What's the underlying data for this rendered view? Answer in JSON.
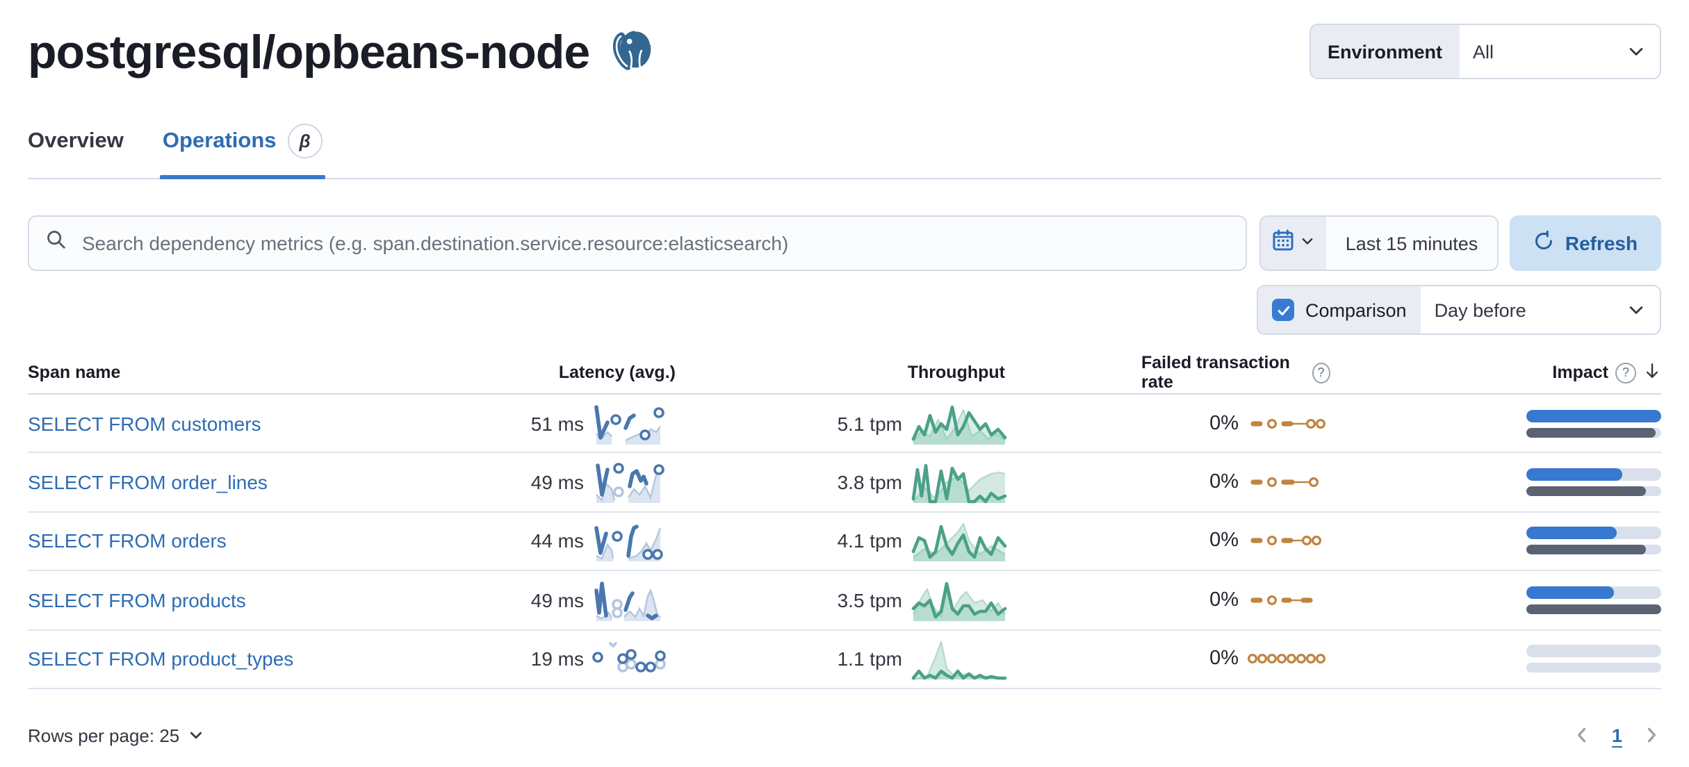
{
  "header": {
    "title": "postgresql/opbeans-node",
    "logo_icon": "postgresql-elephant-icon",
    "environment": {
      "label": "Environment",
      "value": "All"
    }
  },
  "tabs": [
    {
      "label": "Overview",
      "active": false
    },
    {
      "label": "Operations",
      "active": true,
      "beta_label": "β"
    }
  ],
  "toolbar": {
    "search_placeholder": "Search dependency metrics (e.g. span.destination.service.resource:elasticsearch)",
    "time_range": "Last 15 minutes",
    "refresh_label": "Refresh",
    "comparison_label": "Comparison",
    "comparison_checked": true,
    "comparison_value": "Day before"
  },
  "icons": {
    "question": "?"
  },
  "colors": {
    "link_blue": "#2e6cb3",
    "accent_blue": "#3778d0",
    "latency_blue": "#4a77ad",
    "throughput_green": "#4ba088",
    "failed_orange": "#c08441",
    "impact_gray": "#5b6271",
    "refresh_bg": "#cde1f4"
  },
  "table": {
    "columns": [
      "Span name",
      "Latency (avg.)",
      "Throughput",
      "Failed transaction rate",
      "Impact"
    ],
    "sorted_column": "Impact",
    "sort_direction": "desc",
    "rows": [
      {
        "span_name": "SELECT FROM customers",
        "latency": "51 ms",
        "throughput": "5.1 tpm",
        "failed_rate": "0%",
        "impact_pct": 100,
        "impact_prev_pct": 96
      },
      {
        "span_name": "SELECT FROM order_lines",
        "latency": "49 ms",
        "throughput": "3.8 tpm",
        "failed_rate": "0%",
        "impact_pct": 71,
        "impact_prev_pct": 89
      },
      {
        "span_name": "SELECT FROM orders",
        "latency": "44 ms",
        "throughput": "4.1 tpm",
        "failed_rate": "0%",
        "impact_pct": 67,
        "impact_prev_pct": 89
      },
      {
        "span_name": "SELECT FROM products",
        "latency": "49 ms",
        "throughput": "3.5 tpm",
        "failed_rate": "0%",
        "impact_pct": 65,
        "impact_prev_pct": 100
      },
      {
        "span_name": "SELECT FROM product_types",
        "latency": "19 ms",
        "throughput": "1.1 tpm",
        "failed_rate": "0%",
        "impact_pct": 0,
        "impact_prev_pct": 0
      }
    ]
  },
  "sparklines": {
    "latency": [
      {
        "areas": [
          [
            [
              1,
              22
            ],
            [
              4,
              26
            ],
            [
              9,
              21
            ],
            [
              12,
              24
            ]
          ],
          [
            [
              22,
              27
            ],
            [
              28,
              24
            ],
            [
              33,
              22
            ],
            [
              36,
              24
            ],
            [
              40,
              19
            ],
            [
              44,
              21
            ],
            [
              47,
              17
            ]
          ]
        ],
        "segments": [
          [
            [
              1,
              3
            ],
            [
              4,
              25
            ],
            [
              9,
              14
            ]
          ],
          [
            [
              22,
              18
            ],
            [
              25,
              11
            ],
            [
              28,
              9
            ]
          ]
        ],
        "dots": [
          [
            15,
            12
          ],
          [
            36,
            23
          ],
          [
            46,
            7
          ]
        ],
        "lightdots": []
      },
      {
        "areas": [
          [
            [
              1,
              24
            ],
            [
              5,
              28
            ],
            [
              8,
              16
            ],
            [
              12,
              20
            ],
            [
              14,
              28
            ]
          ],
          [
            [
              24,
              26
            ],
            [
              28,
              20
            ],
            [
              32,
              24
            ],
            [
              36,
              18
            ],
            [
              40,
              26
            ],
            [
              44,
              10
            ],
            [
              47,
              8
            ]
          ]
        ],
        "segments": [
          [
            [
              2,
              3
            ],
            [
              5,
              24
            ],
            [
              9,
              6
            ]
          ],
          [
            [
              25,
              18
            ],
            [
              27,
              9
            ],
            [
              30,
              7
            ],
            [
              33,
              14
            ],
            [
              35,
              11
            ],
            [
              37,
              16
            ]
          ]
        ],
        "dots": [
          [
            17,
            5
          ],
          [
            46,
            6
          ]
        ],
        "lightdots": [
          [
            17,
            22
          ]
        ]
      },
      {
        "areas": [
          [
            [
              1,
              26
            ],
            [
              5,
              28
            ],
            [
              9,
              18
            ],
            [
              12,
              22
            ],
            [
              13,
              28
            ]
          ],
          [
            [
              24,
              28
            ],
            [
              30,
              26
            ],
            [
              34,
              22
            ],
            [
              37,
              17
            ],
            [
              40,
              22
            ],
            [
              44,
              14
            ],
            [
              47,
              6
            ]
          ]
        ],
        "segments": [
          [
            [
              1,
              6
            ],
            [
              4,
              24
            ],
            [
              8,
              10
            ]
          ],
          [
            [
              24,
              26
            ],
            [
              26,
              12
            ],
            [
              28,
              6
            ],
            [
              30,
              5
            ]
          ]
        ],
        "dots": [
          [
            16,
            12
          ],
          [
            38,
            25
          ],
          [
            45,
            25
          ]
        ],
        "lightdots": []
      },
      {
        "areas": [
          [
            [
              1,
              26
            ],
            [
              4,
              28
            ],
            [
              7,
              27
            ],
            [
              10,
              24
            ],
            [
              12,
              28
            ]
          ],
          [
            [
              21,
              27
            ],
            [
              25,
              23
            ],
            [
              29,
              27
            ],
            [
              32,
              21
            ],
            [
              35,
              26
            ],
            [
              38,
              12
            ],
            [
              40,
              8
            ],
            [
              42,
              14
            ],
            [
              45,
              26
            ],
            [
              47,
              27
            ]
          ]
        ],
        "segments": [
          [
            [
              1,
              8
            ],
            [
              3,
              24
            ],
            [
              5,
              3
            ],
            [
              8,
              26
            ]
          ],
          [
            [
              22,
              22
            ],
            [
              25,
              13
            ],
            [
              27,
              10
            ]
          ],
          [
            [
              38,
              26
            ],
            [
              41,
              28
            ],
            [
              44,
              26
            ]
          ]
        ],
        "dots": [],
        "lightdots": [
          [
            16,
            18
          ],
          [
            16,
            24
          ]
        ]
      },
      {
        "areas": [],
        "segments": [],
        "lightsegments": [
          [
            [
              11,
              4
            ],
            [
              13,
              6
            ],
            [
              15,
              4
            ]
          ]
        ],
        "dots": [
          [
            2,
            14
          ],
          [
            20,
            15
          ],
          [
            26,
            12
          ],
          [
            33,
            21
          ],
          [
            40,
            21
          ],
          [
            47,
            13
          ]
        ],
        "lightdots": [
          [
            20,
            21
          ],
          [
            26,
            19
          ],
          [
            47,
            19
          ]
        ]
      }
    ],
    "throughput": [
      {
        "current": [
          [
            0,
            26
          ],
          [
            4,
            17
          ],
          [
            8,
            23
          ],
          [
            12,
            9
          ],
          [
            16,
            21
          ],
          [
            20,
            15
          ],
          [
            24,
            19
          ],
          [
            28,
            3
          ],
          [
            32,
            23
          ],
          [
            36,
            17
          ],
          [
            40,
            7
          ],
          [
            44,
            13
          ],
          [
            48,
            19
          ],
          [
            52,
            15
          ],
          [
            56,
            23
          ],
          [
            61,
            19
          ],
          [
            66,
            25
          ]
        ],
        "previous": [
          [
            0,
            28
          ],
          [
            6,
            20
          ],
          [
            12,
            24
          ],
          [
            18,
            12
          ],
          [
            24,
            26
          ],
          [
            30,
            18
          ],
          [
            36,
            5
          ],
          [
            42,
            24
          ],
          [
            48,
            20
          ],
          [
            54,
            26
          ],
          [
            60,
            22
          ],
          [
            66,
            27
          ]
        ]
      },
      {
        "current": [
          [
            0,
            27
          ],
          [
            3,
            6
          ],
          [
            6,
            25
          ],
          [
            9,
            3
          ],
          [
            12,
            29
          ],
          [
            16,
            29
          ],
          [
            20,
            7
          ],
          [
            24,
            27
          ],
          [
            28,
            5
          ],
          [
            32,
            13
          ],
          [
            36,
            9
          ],
          [
            40,
            29
          ],
          [
            44,
            29
          ],
          [
            48,
            25
          ],
          [
            52,
            29
          ],
          [
            56,
            23
          ],
          [
            61,
            27
          ],
          [
            66,
            25
          ]
        ],
        "previous": [
          [
            0,
            29
          ],
          [
            8,
            19
          ],
          [
            16,
            27
          ],
          [
            24,
            15
          ],
          [
            32,
            11
          ],
          [
            40,
            21
          ],
          [
            48,
            13
          ],
          [
            56,
            9
          ],
          [
            62,
            8
          ],
          [
            66,
            9
          ]
        ]
      },
      {
        "current": [
          [
            0,
            23
          ],
          [
            4,
            13
          ],
          [
            8,
            15
          ],
          [
            12,
            27
          ],
          [
            16,
            23
          ],
          [
            20,
            5
          ],
          [
            24,
            19
          ],
          [
            28,
            25
          ],
          [
            32,
            17
          ],
          [
            36,
            11
          ],
          [
            40,
            23
          ],
          [
            44,
            27
          ],
          [
            48,
            13
          ],
          [
            52,
            21
          ],
          [
            56,
            25
          ],
          [
            61,
            13
          ],
          [
            66,
            19
          ]
        ],
        "previous": [
          [
            0,
            27
          ],
          [
            8,
            21
          ],
          [
            16,
            25
          ],
          [
            24,
            17
          ],
          [
            32,
            9
          ],
          [
            36,
            3
          ],
          [
            40,
            15
          ],
          [
            48,
            25
          ],
          [
            56,
            19
          ],
          [
            66,
            25
          ]
        ]
      },
      {
        "current": [
          [
            0,
            21
          ],
          [
            4,
            17
          ],
          [
            8,
            19
          ],
          [
            12,
            15
          ],
          [
            16,
            27
          ],
          [
            20,
            23
          ],
          [
            24,
            3
          ],
          [
            28,
            21
          ],
          [
            32,
            25
          ],
          [
            36,
            19
          ],
          [
            40,
            19
          ],
          [
            44,
            25
          ],
          [
            48,
            23
          ],
          [
            52,
            23
          ],
          [
            56,
            17
          ],
          [
            61,
            25
          ],
          [
            66,
            21
          ]
        ],
        "previous": [
          [
            0,
            25
          ],
          [
            6,
            13
          ],
          [
            10,
            7
          ],
          [
            14,
            19
          ],
          [
            20,
            27
          ],
          [
            24,
            9
          ],
          [
            28,
            23
          ],
          [
            34,
            13
          ],
          [
            38,
            9
          ],
          [
            44,
            17
          ],
          [
            50,
            15
          ],
          [
            56,
            23
          ],
          [
            61,
            17
          ],
          [
            66,
            25
          ]
        ]
      },
      {
        "current": [
          [
            0,
            29
          ],
          [
            4,
            24
          ],
          [
            8,
            29
          ],
          [
            12,
            27
          ],
          [
            16,
            29
          ],
          [
            20,
            24
          ],
          [
            24,
            27
          ],
          [
            28,
            29
          ],
          [
            32,
            24
          ],
          [
            36,
            29
          ],
          [
            40,
            26
          ],
          [
            44,
            29
          ],
          [
            48,
            27
          ],
          [
            52,
            29
          ],
          [
            56,
            28
          ],
          [
            61,
            29
          ],
          [
            66,
            29
          ]
        ],
        "previous": [
          [
            0,
            30
          ],
          [
            10,
            28
          ],
          [
            16,
            14
          ],
          [
            20,
            3
          ],
          [
            24,
            22
          ],
          [
            30,
            28
          ],
          [
            38,
            26
          ],
          [
            46,
            29
          ],
          [
            54,
            28
          ],
          [
            66,
            30
          ]
        ]
      }
    ],
    "failed": [
      {
        "dashes": [
          [
            1,
            9
          ],
          [
            23,
            31
          ]
        ],
        "lines": [
          [
            31,
            41
          ],
          [
            46,
            49
          ]
        ],
        "dots": [
          16,
          44,
          51
        ]
      },
      {
        "dashes": [
          [
            1,
            9
          ],
          [
            23,
            32
          ]
        ],
        "lines": [
          [
            32,
            43
          ]
        ],
        "dots": [
          16,
          46
        ]
      },
      {
        "dashes": [
          [
            1,
            9
          ],
          [
            23,
            31
          ]
        ],
        "lines": [
          [
            31,
            38
          ]
        ],
        "dots": [
          16,
          41,
          48
        ]
      },
      {
        "dashes": [
          [
            1,
            9
          ],
          [
            23,
            30
          ],
          [
            37,
            45
          ]
        ],
        "lines": [
          [
            30,
            37
          ]
        ],
        "dots": [
          16
        ]
      },
      {
        "dashes": [],
        "lines": [],
        "dots": [
          2,
          9,
          16,
          23,
          30,
          37,
          44,
          51
        ]
      }
    ]
  },
  "footer": {
    "rows_per_page": "Rows per page: 25",
    "page": "1"
  }
}
